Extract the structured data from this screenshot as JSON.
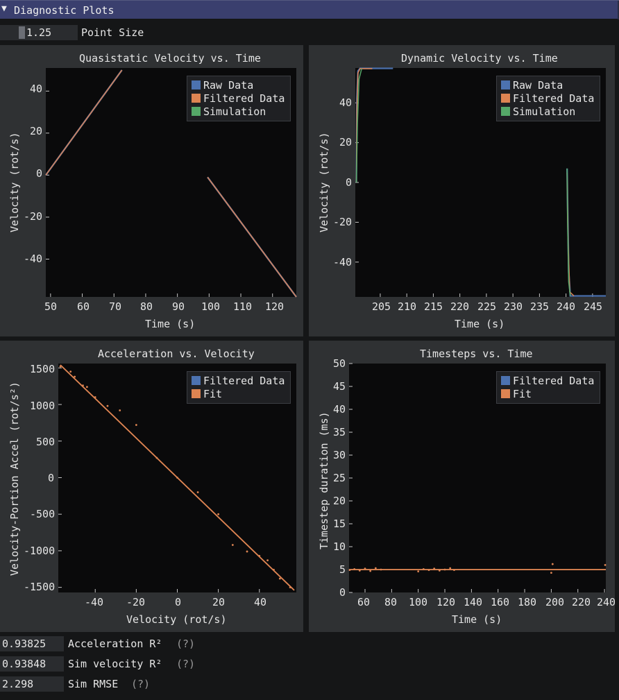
{
  "window": {
    "title": "Diagnostic Plots",
    "collapse_icon": "triangle-down-icon"
  },
  "point_size": {
    "value": "1.25",
    "label": "Point Size"
  },
  "colors": {
    "raw": "#4c72b0",
    "filtered": "#dd8452",
    "simulation": "#55a868"
  },
  "plots": {
    "quasistatic": {
      "title": "Quasistatic Velocity vs. Time",
      "xlabel": "Time (s)",
      "ylabel": "Velocity (rot/s)",
      "xticks": [
        "50",
        "60",
        "70",
        "80",
        "90",
        "100",
        "110",
        "120"
      ],
      "yticks": [
        "40",
        "20",
        "0",
        "-20",
        "-40"
      ],
      "legend": [
        "Raw Data",
        "Filtered Data",
        "Simulation"
      ]
    },
    "dynamic": {
      "title": "Dynamic Velocity vs. Time",
      "xlabel": "Time (s)",
      "ylabel": "Velocity (rot/s)",
      "xticks": [
        "205",
        "210",
        "215",
        "220",
        "225",
        "230",
        "235",
        "240",
        "245"
      ],
      "yticks": [
        "40",
        "20",
        "0",
        "-20",
        "-40"
      ],
      "legend": [
        "Raw Data",
        "Filtered Data",
        "Simulation"
      ]
    },
    "accel": {
      "title": "Acceleration vs. Velocity",
      "xlabel": "Velocity (rot/s)",
      "ylabel": "Velocity-Portion Accel (rot/s²)",
      "xticks": [
        "-40",
        "-20",
        "0",
        "20",
        "40"
      ],
      "yticks": [
        "1500",
        "1000",
        "500",
        "0",
        "-500",
        "-1000",
        "-1500"
      ],
      "legend": [
        "Filtered Data",
        "Fit"
      ]
    },
    "timesteps": {
      "title": "Timesteps vs. Time",
      "xlabel": "Time (s)",
      "ylabel": "Timestep duration (ms)",
      "xticks": [
        "60",
        "80",
        "100",
        "120",
        "140",
        "160",
        "180",
        "200",
        "220",
        "240"
      ],
      "yticks": [
        "50",
        "45",
        "40",
        "35",
        "30",
        "25",
        "20",
        "15",
        "10",
        "5",
        "0"
      ],
      "legend": [
        "Filtered Data",
        "Fit"
      ]
    }
  },
  "chart_data": [
    {
      "type": "line",
      "title": "Quasistatic Velocity vs. Time",
      "xlabel": "Time (s)",
      "ylabel": "Velocity (rot/s)",
      "xlim": [
        48.5,
        127.5
      ],
      "ylim": [
        -58,
        51
      ],
      "series": [
        {
          "name": "Raw Data",
          "x": [
            48.5,
            72.5
          ],
          "y": [
            0,
            50
          ]
        },
        {
          "name": "Filtered Data",
          "x": [
            48.5,
            72.5
          ],
          "y": [
            0,
            50
          ]
        },
        {
          "name": "Raw Data",
          "x": [
            99.5,
            127.5
          ],
          "y": [
            -1,
            -58
          ]
        },
        {
          "name": "Filtered Data",
          "x": [
            99.5,
            127.5
          ],
          "y": [
            -1,
            -58
          ]
        }
      ],
      "legend": "top-right",
      "grid": false
    },
    {
      "type": "line",
      "title": "Dynamic Velocity vs. Time",
      "xlabel": "Time (s)",
      "ylabel": "Velocity (rot/s)",
      "xlim": [
        200.3,
        247.5
      ],
      "ylim": [
        -57.5,
        57.5
      ],
      "series": [
        {
          "name": "Raw Data",
          "x": [
            200.5,
            200.6,
            200.8,
            201.2,
            207.4
          ],
          "y": [
            0,
            42,
            56,
            57.3,
            57.3
          ]
        },
        {
          "name": "Filtered Data",
          "x": [
            200.5,
            200.6,
            200.8,
            201.2,
            203.5
          ],
          "y": [
            0,
            35,
            55,
            57.2,
            57.2
          ]
        },
        {
          "name": "Simulation",
          "x": [
            200.5,
            200.7,
            201.0,
            201.5
          ],
          "y": [
            0,
            30,
            52,
            57.2
          ]
        },
        {
          "name": "Raw Data",
          "x": [
            240.2,
            240.3,
            240.5,
            240.8,
            247.5
          ],
          "y": [
            7,
            -10,
            -45,
            -57,
            -57
          ]
        },
        {
          "name": "Filtered Data",
          "x": [
            240.2,
            240.4,
            240.7,
            241.5
          ],
          "y": [
            5,
            -30,
            -55,
            -57
          ]
        },
        {
          "name": "Simulation",
          "x": [
            240.2,
            240.3,
            240.5,
            240.8
          ],
          "y": [
            7,
            -20,
            -50,
            -57
          ]
        }
      ],
      "legend": "top-right",
      "grid": false
    },
    {
      "type": "scatter",
      "title": "Acceleration vs. Velocity",
      "xlabel": "Velocity (rot/s)",
      "ylabel": "Velocity-Portion Accel (rot/s²)",
      "xlim": [
        -58,
        58
      ],
      "ylim": [
        -1570,
        1560
      ],
      "series": [
        {
          "name": "Filtered Data",
          "x": [
            -57,
            -52,
            -50,
            -46,
            -44,
            -40,
            -34,
            -28,
            -20,
            -10,
            0,
            10,
            20,
            27,
            34,
            40,
            44,
            47,
            50,
            55
          ],
          "y": [
            1520,
            1450,
            1380,
            1260,
            1240,
            1100,
            980,
            920,
            720,
            270,
            0,
            -200,
            -500,
            -920,
            -1010,
            -1070,
            -1130,
            -1260,
            -1380,
            -1500
          ]
        },
        {
          "name": "Fit",
          "x": [
            -57,
            57
          ],
          "y": [
            1540,
            -1540
          ]
        }
      ],
      "legend": "top-right",
      "grid": false
    },
    {
      "type": "scatter",
      "title": "Timesteps vs. Time",
      "xlabel": "Time (s)",
      "ylabel": "Timestep duration (ms)",
      "xlim": [
        48,
        241
      ],
      "ylim": [
        0,
        50
      ],
      "series": [
        {
          "name": "Filtered Data",
          "x": [
            48.5,
            52,
            56,
            60,
            64,
            68,
            72,
            100,
            104,
            108,
            112,
            116,
            120,
            124,
            127,
            200,
            201,
            240.5
          ],
          "y": [
            4.9,
            5.1,
            4.8,
            5.2,
            4.7,
            5.3,
            5.0,
            4.6,
            5.1,
            4.9,
            5.2,
            4.8,
            5.0,
            5.3,
            4.9,
            4.3,
            6.2,
            6.0
          ]
        },
        {
          "name": "Fit",
          "x": [
            48,
            241
          ],
          "y": [
            5,
            5
          ]
        }
      ],
      "legend": "top-right",
      "grid": false
    }
  ],
  "metrics": [
    {
      "value": "0.93825",
      "label": "Acceleration R²",
      "help": "(?)"
    },
    {
      "value": "0.93848",
      "label": "Sim velocity R²",
      "help": "(?)"
    },
    {
      "value": "2.298",
      "label": "Sim RMSE",
      "help": "(?)"
    }
  ]
}
